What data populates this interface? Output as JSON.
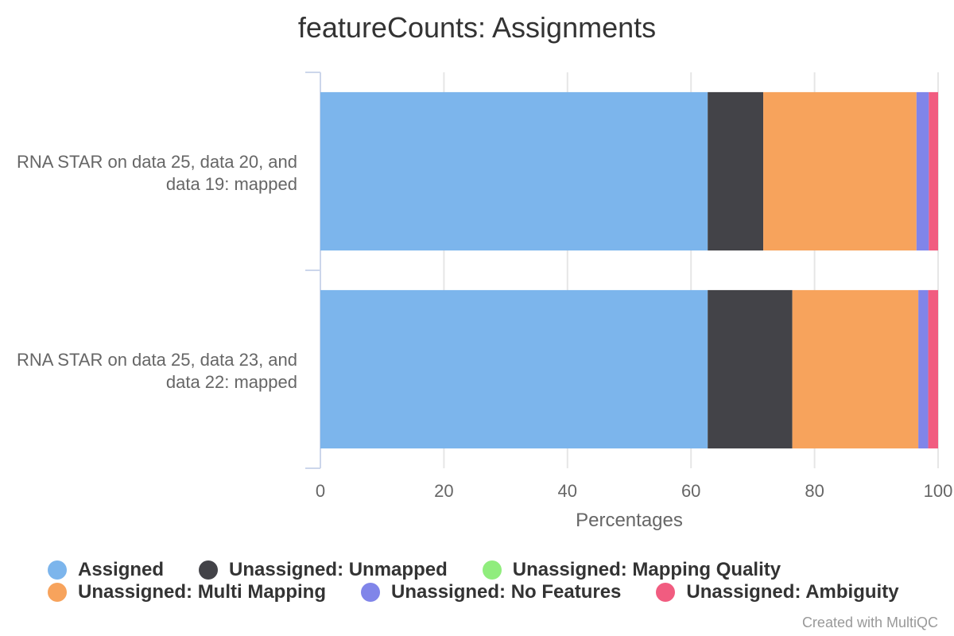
{
  "chart_data": {
    "type": "bar",
    "orientation": "horizontal",
    "stacked": true,
    "title": "featureCounts: Assignments",
    "xlabel": "Percentages",
    "xlim": [
      0,
      100
    ],
    "xticks": [
      "0",
      "20",
      "40",
      "60",
      "80",
      "100"
    ],
    "grid": true,
    "legend_position": "bottom",
    "categories": [
      "RNA STAR on data 25, data 20, and data 19: mapped",
      "RNA STAR on data 25, data 23, and data 22: mapped"
    ],
    "category_lines": [
      [
        "RNA STAR on data 25, data 20, and",
        "data 19: mapped"
      ],
      [
        "RNA STAR on data 25, data 23, and",
        "data 22: mapped"
      ]
    ],
    "series": [
      {
        "name": "Assigned",
        "color": "#7cb5ec",
        "values": [
          62.7,
          62.7
        ]
      },
      {
        "name": "Unassigned: Unmapped",
        "color": "#434348",
        "values": [
          9.0,
          13.7
        ]
      },
      {
        "name": "Unassigned: Mapping Quality",
        "color": "#90ed7d",
        "values": [
          0,
          0
        ]
      },
      {
        "name": "Unassigned: Multi Mapping",
        "color": "#f7a35c",
        "values": [
          24.8,
          20.4
        ]
      },
      {
        "name": "Unassigned: No Features",
        "color": "#8085e9",
        "values": [
          2.0,
          1.6
        ]
      },
      {
        "name": "Unassigned: Ambiguity",
        "color": "#f15c80",
        "values": [
          1.5,
          1.6
        ]
      }
    ]
  },
  "footer": {
    "credits": "Created with MultiQC"
  }
}
